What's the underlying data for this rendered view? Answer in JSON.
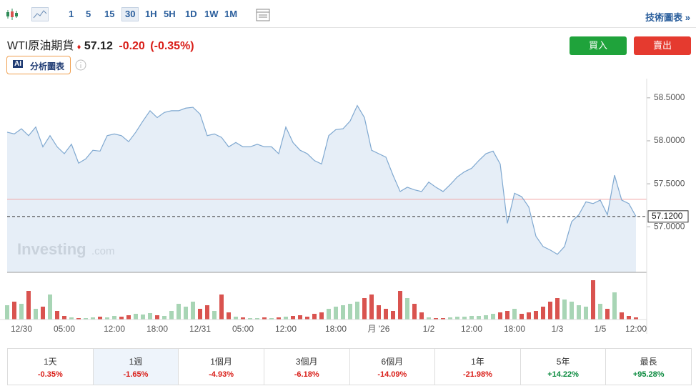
{
  "toolbar": {
    "intervals": [
      "1",
      "5",
      "15",
      "30",
      "1H",
      "5H",
      "1D",
      "1W",
      "1M"
    ],
    "active_interval": 3,
    "link": "技術圖表 »"
  },
  "header": {
    "name": "WTI原油期貨",
    "price": "57.12",
    "change": "-0.20",
    "change_pct": "(-0.35%)",
    "buy": "買入",
    "sell": "賣出",
    "ai_badge": "AI",
    "ai_button": "分析圖表"
  },
  "chart_data": {
    "type": "area",
    "color": "#7fa8d0",
    "fill": "#e6eef7",
    "categories": [
      null,
      null,
      "12/30",
      null,
      null,
      null,
      null,
      null,
      "05:00",
      null,
      null,
      null,
      null,
      null,
      null,
      "12:00",
      null,
      null,
      null,
      null,
      null,
      "18:00",
      null,
      null,
      null,
      null,
      null,
      "12/31",
      null,
      null,
      null,
      null,
      null,
      "05:00",
      null,
      null,
      null,
      null,
      null,
      "12:00",
      null,
      null,
      null,
      null,
      null,
      null,
      "18:00",
      null,
      null,
      null,
      null,
      null,
      "月 '26",
      null,
      null,
      null,
      null,
      null,
      null,
      "1/2",
      null,
      null,
      null,
      null,
      null,
      "12:00",
      null,
      null,
      null,
      null,
      null,
      "18:00",
      null,
      null,
      null,
      null,
      null,
      "1/3",
      null,
      null,
      null,
      null,
      null,
      "1/5",
      null,
      null,
      null,
      null,
      "12:00"
    ],
    "values": [
      58.1,
      58.08,
      58.14,
      58.06,
      58.16,
      57.93,
      58.06,
      57.93,
      57.85,
      57.96,
      57.74,
      57.79,
      57.89,
      57.88,
      58.06,
      58.08,
      58.06,
      57.99,
      58.1,
      58.23,
      58.35,
      58.27,
      58.33,
      58.35,
      58.35,
      58.38,
      58.39,
      58.31,
      58.06,
      58.08,
      58.04,
      57.93,
      57.98,
      57.93,
      57.93,
      57.96,
      57.93,
      57.93,
      57.85,
      58.16,
      57.98,
      57.89,
      57.85,
      57.77,
      57.73,
      58.06,
      58.13,
      58.14,
      58.23,
      58.41,
      58.27,
      57.89,
      57.85,
      57.81,
      57.6,
      57.41,
      57.46,
      57.43,
      57.41,
      57.52,
      57.46,
      57.41,
      57.49,
      57.58,
      57.64,
      57.68,
      57.77,
      57.85,
      57.88,
      57.73,
      57.04,
      57.39,
      57.35,
      57.23,
      56.89,
      56.77,
      56.73,
      56.68,
      56.77,
      57.06,
      57.14,
      57.29,
      57.27,
      57.31,
      57.14,
      57.6,
      57.31,
      57.27,
      57.12
    ],
    "volume": [
      20,
      25,
      22,
      40,
      15,
      18,
      35,
      12,
      5,
      3,
      2,
      2,
      3,
      4,
      3,
      5,
      4,
      6,
      8,
      7,
      9,
      6,
      5,
      12,
      22,
      18,
      25,
      15,
      20,
      12,
      35,
      10,
      4,
      3,
      2,
      2,
      3,
      2,
      3,
      4,
      5,
      6,
      4,
      8,
      10,
      15,
      18,
      20,
      22,
      25,
      30,
      35,
      20,
      15,
      12,
      40,
      30,
      22,
      10,
      3,
      2,
      2,
      3,
      4,
      4,
      5,
      5,
      6,
      8,
      10,
      12,
      15,
      8,
      10,
      12,
      18,
      25,
      30,
      28,
      25,
      20,
      18,
      55,
      22,
      15,
      38,
      10,
      5,
      3
    ],
    "up_color": "#a8d5b5",
    "down_color": "#d9534f",
    "ylim": [
      56.47,
      58.64
    ],
    "yticks": [
      {
        "value": 57.0,
        "label": "57.0000"
      },
      {
        "value": 57.5,
        "label": "57.5000"
      },
      {
        "value": 58.0,
        "label": "58.0000"
      },
      {
        "value": 58.5,
        "label": "58.5000"
      }
    ],
    "last_price": {
      "value": 57.12,
      "label": "57.1200"
    },
    "reference_line": {
      "value": 57.32,
      "color": "#f2a5a5"
    },
    "watermark": "Investing",
    "watermark_suffix": ".com"
  },
  "periods": {
    "active": 1,
    "items": [
      {
        "label": "1天",
        "change": "-0.35%"
      },
      {
        "label": "1週",
        "change": "-1.65%"
      },
      {
        "label": "1個月",
        "change": "-4.93%"
      },
      {
        "label": "3個月",
        "change": "-6.18%"
      },
      {
        "label": "6個月",
        "change": "-14.09%"
      },
      {
        "label": "1年",
        "change": "-21.98%"
      },
      {
        "label": "5年",
        "change": "+14.22%"
      },
      {
        "label": "最長",
        "change": "+95.28%"
      }
    ]
  }
}
